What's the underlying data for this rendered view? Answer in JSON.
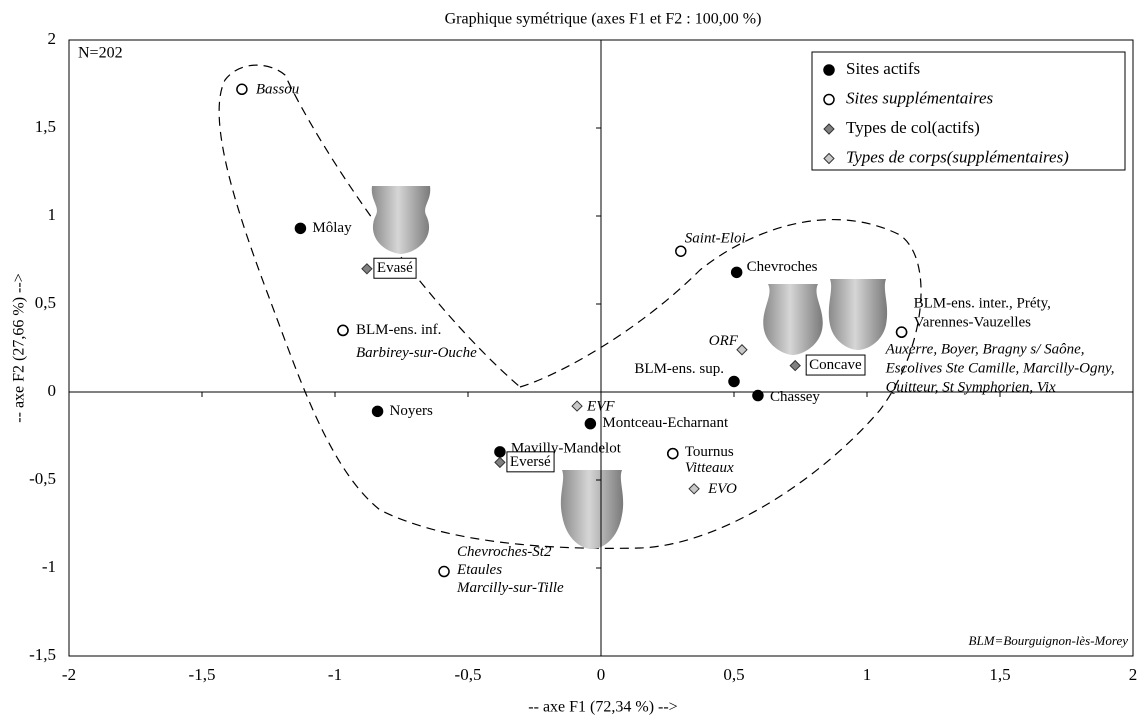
{
  "chart_data": {
    "type": "scatter",
    "title": "Graphique symétrique (axes F1 et F2 : 100,00 %)",
    "x_label": "-- axe F1 (72,34 %) -->",
    "y_label": "-- axe F2 (27,66 %) -->",
    "annotations": [
      "N=202",
      "BLM=Bourguignon-lès-Morey"
    ],
    "xlim": [
      -2,
      2
    ],
    "ylim": [
      -1.5,
      2
    ],
    "xticks": [
      -2,
      {
        "value": -1.5,
        "label": "-1,5"
      },
      -1,
      {
        "value": -0.5,
        "label": "-0,5"
      },
      0,
      {
        "value": 0.5,
        "label": "0,5"
      },
      1,
      {
        "value": 1.5,
        "label": "1,5"
      },
      2
    ],
    "yticks": [
      {
        "value": -1.5,
        "label": "-1,5"
      },
      -1,
      {
        "value": -0.5,
        "label": "-0,5"
      },
      0,
      {
        "value": 0.5,
        "label": "0,5"
      },
      1,
      {
        "value": 1.5,
        "label": "1,5"
      },
      2
    ],
    "legend": "upper right",
    "series": [
      {
        "name": "Sites actifs",
        "marker": "circle",
        "filled": true,
        "italic": false,
        "boxed": false,
        "color": "#000000",
        "x": [
          -1.13,
          -0.97,
          -0.84,
          -0.38,
          -0.04,
          0.27,
          0.51,
          0.5,
          0.59,
          1.13
        ],
        "values": [
          0.93,
          0.35,
          -0.11,
          -0.34,
          -0.18,
          -0.35,
          0.68,
          0.06,
          -0.02,
          0.34
        ],
        "labels": [
          [
            "Môlay"
          ],
          [
            "BLM-ens. inf."
          ],
          [
            "Noyers"
          ],
          [
            "Mavilly-Mandelot"
          ],
          [
            "Montceau-Echarnant"
          ],
          [
            "Tournus"
          ],
          [
            "Chevroches"
          ],
          [
            "BLM-ens. sup."
          ],
          [
            "Chassey"
          ],
          [
            "BLM-ens. inter., Préty,",
            "Varennes-Vauzelles"
          ]
        ]
      },
      {
        "name": "Sites supplémentaires",
        "marker": "circle",
        "filled": false,
        "italic": true,
        "boxed": false,
        "color": "#000000",
        "x": [
          -1.35,
          0.3,
          -0.59,
          -0.97,
          0.27,
          1.13
        ],
        "values": [
          1.72,
          0.8,
          -1.02,
          0.35,
          -0.35,
          0.34
        ],
        "labels": [
          [
            "Bassou"
          ],
          [
            "Saint-Eloi"
          ],
          [
            "Chevroches-St2",
            "Etaules",
            "Marcilly-sur-Tille"
          ],
          [
            "Barbirey-sur-Ouche"
          ],
          [
            "Vitteaux"
          ],
          [
            "Auxerre, Boyer, Bragny s/ Saône,",
            "Escolives Ste Camille, Marcilly-Ogny,",
            "Quitteur, St Symphorien, Vix"
          ]
        ]
      },
      {
        "name": "Types de col(actifs)",
        "marker": "diamond",
        "filled": true,
        "italic": false,
        "boxed": true,
        "color": "#808080",
        "x": [
          -0.88,
          -0.38,
          0.73
        ],
        "values": [
          0.7,
          -0.4,
          0.15
        ],
        "labels": [
          [
            "Evasé"
          ],
          [
            "Eversé"
          ],
          [
            "Concave"
          ]
        ]
      },
      {
        "name": "Types de corps(supplémentaires)",
        "marker": "diamond",
        "filled": true,
        "italic": true,
        "boxed": false,
        "color": "#c8c8c8",
        "x": [
          -0.09,
          0.53,
          0.35
        ],
        "values": [
          -0.08,
          0.24,
          -0.55
        ],
        "labels": [
          [
            "EVF"
          ],
          [
            "ORF"
          ],
          [
            "EVO"
          ]
        ]
      }
    ]
  }
}
